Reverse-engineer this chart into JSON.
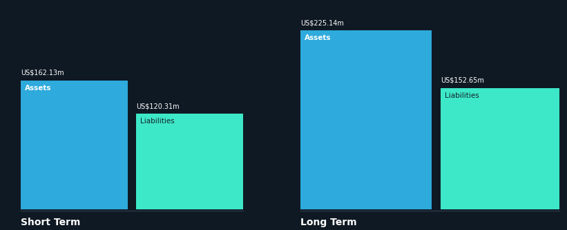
{
  "background_color": "#0f1923",
  "bar_color_assets": "#2eaadc",
  "bar_color_liabilities": "#3de8c8",
  "text_color_white": "#ffffff",
  "text_color_dark": "#131f2b",
  "short_term": {
    "label": "Short Term",
    "assets_value": 162.13,
    "assets_label": "Assets",
    "assets_value_str": "US$162.13m",
    "liabilities_value": 120.31,
    "liabilities_label": "Liabilities",
    "liabilities_value_str": "US$120.31m"
  },
  "long_term": {
    "label": "Long Term",
    "assets_value": 225.14,
    "assets_label": "Assets",
    "assets_value_str": "US$225.14m",
    "liabilities_value": 152.65,
    "liabilities_label": "Liabilities",
    "liabilities_value_str": "US$152.65m"
  },
  "figsize": [
    8.21,
    3.34
  ],
  "dpi": 100
}
